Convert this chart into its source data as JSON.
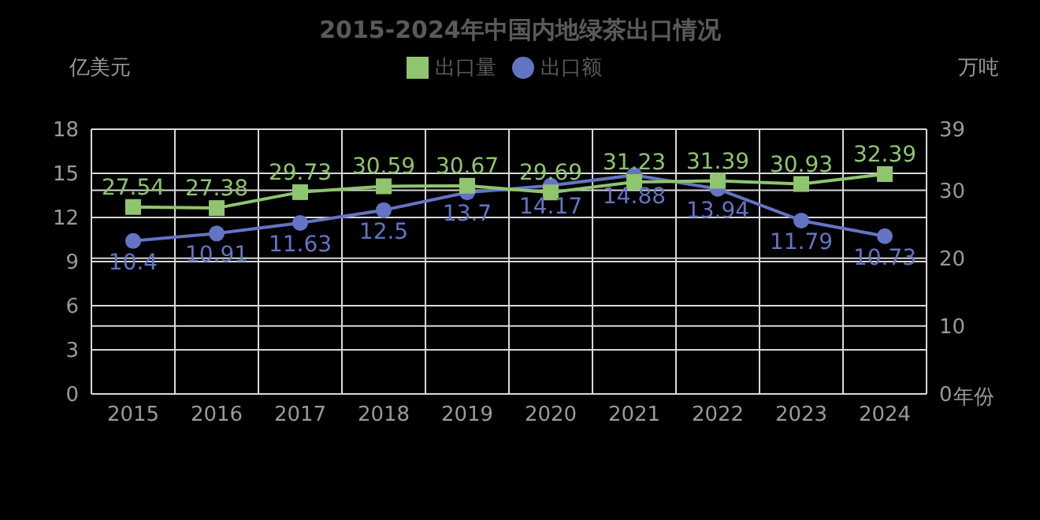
{
  "chart_data": {
    "type": "line",
    "title": "2015-2024年中国内地绿茶出口情况",
    "xlabel": "年份",
    "ylabel": "亿美元",
    "y2label": "万吨",
    "categories": [
      "2015",
      "2016",
      "2017",
      "2018",
      "2019",
      "2020",
      "2021",
      "2022",
      "2023",
      "2024"
    ],
    "series": [
      {
        "name": "出口额",
        "color": "#6474c4",
        "marker": "circle",
        "values": [
          10.4,
          10.91,
          11.63,
          12.5,
          13.7,
          14.17,
          14.88,
          13.94,
          11.79,
          10.73
        ]
      },
      {
        "name": "出口量",
        "color": "#8ec56e",
        "marker": "square",
        "axis": "y2",
        "values": [
          27.54,
          27.38,
          29.73,
          30.59,
          30.67,
          29.69,
          31.23,
          31.39,
          30.93,
          32.39
        ]
      }
    ],
    "ylim": [
      0,
      18
    ],
    "yticks": [
      0,
      3,
      6,
      9,
      12,
      15,
      18
    ],
    "y2lim": [
      0,
      39
    ],
    "y2ticks": [
      0,
      10,
      20,
      30,
      39
    ],
    "grid": true,
    "legend": "top",
    "data_labels": true
  }
}
